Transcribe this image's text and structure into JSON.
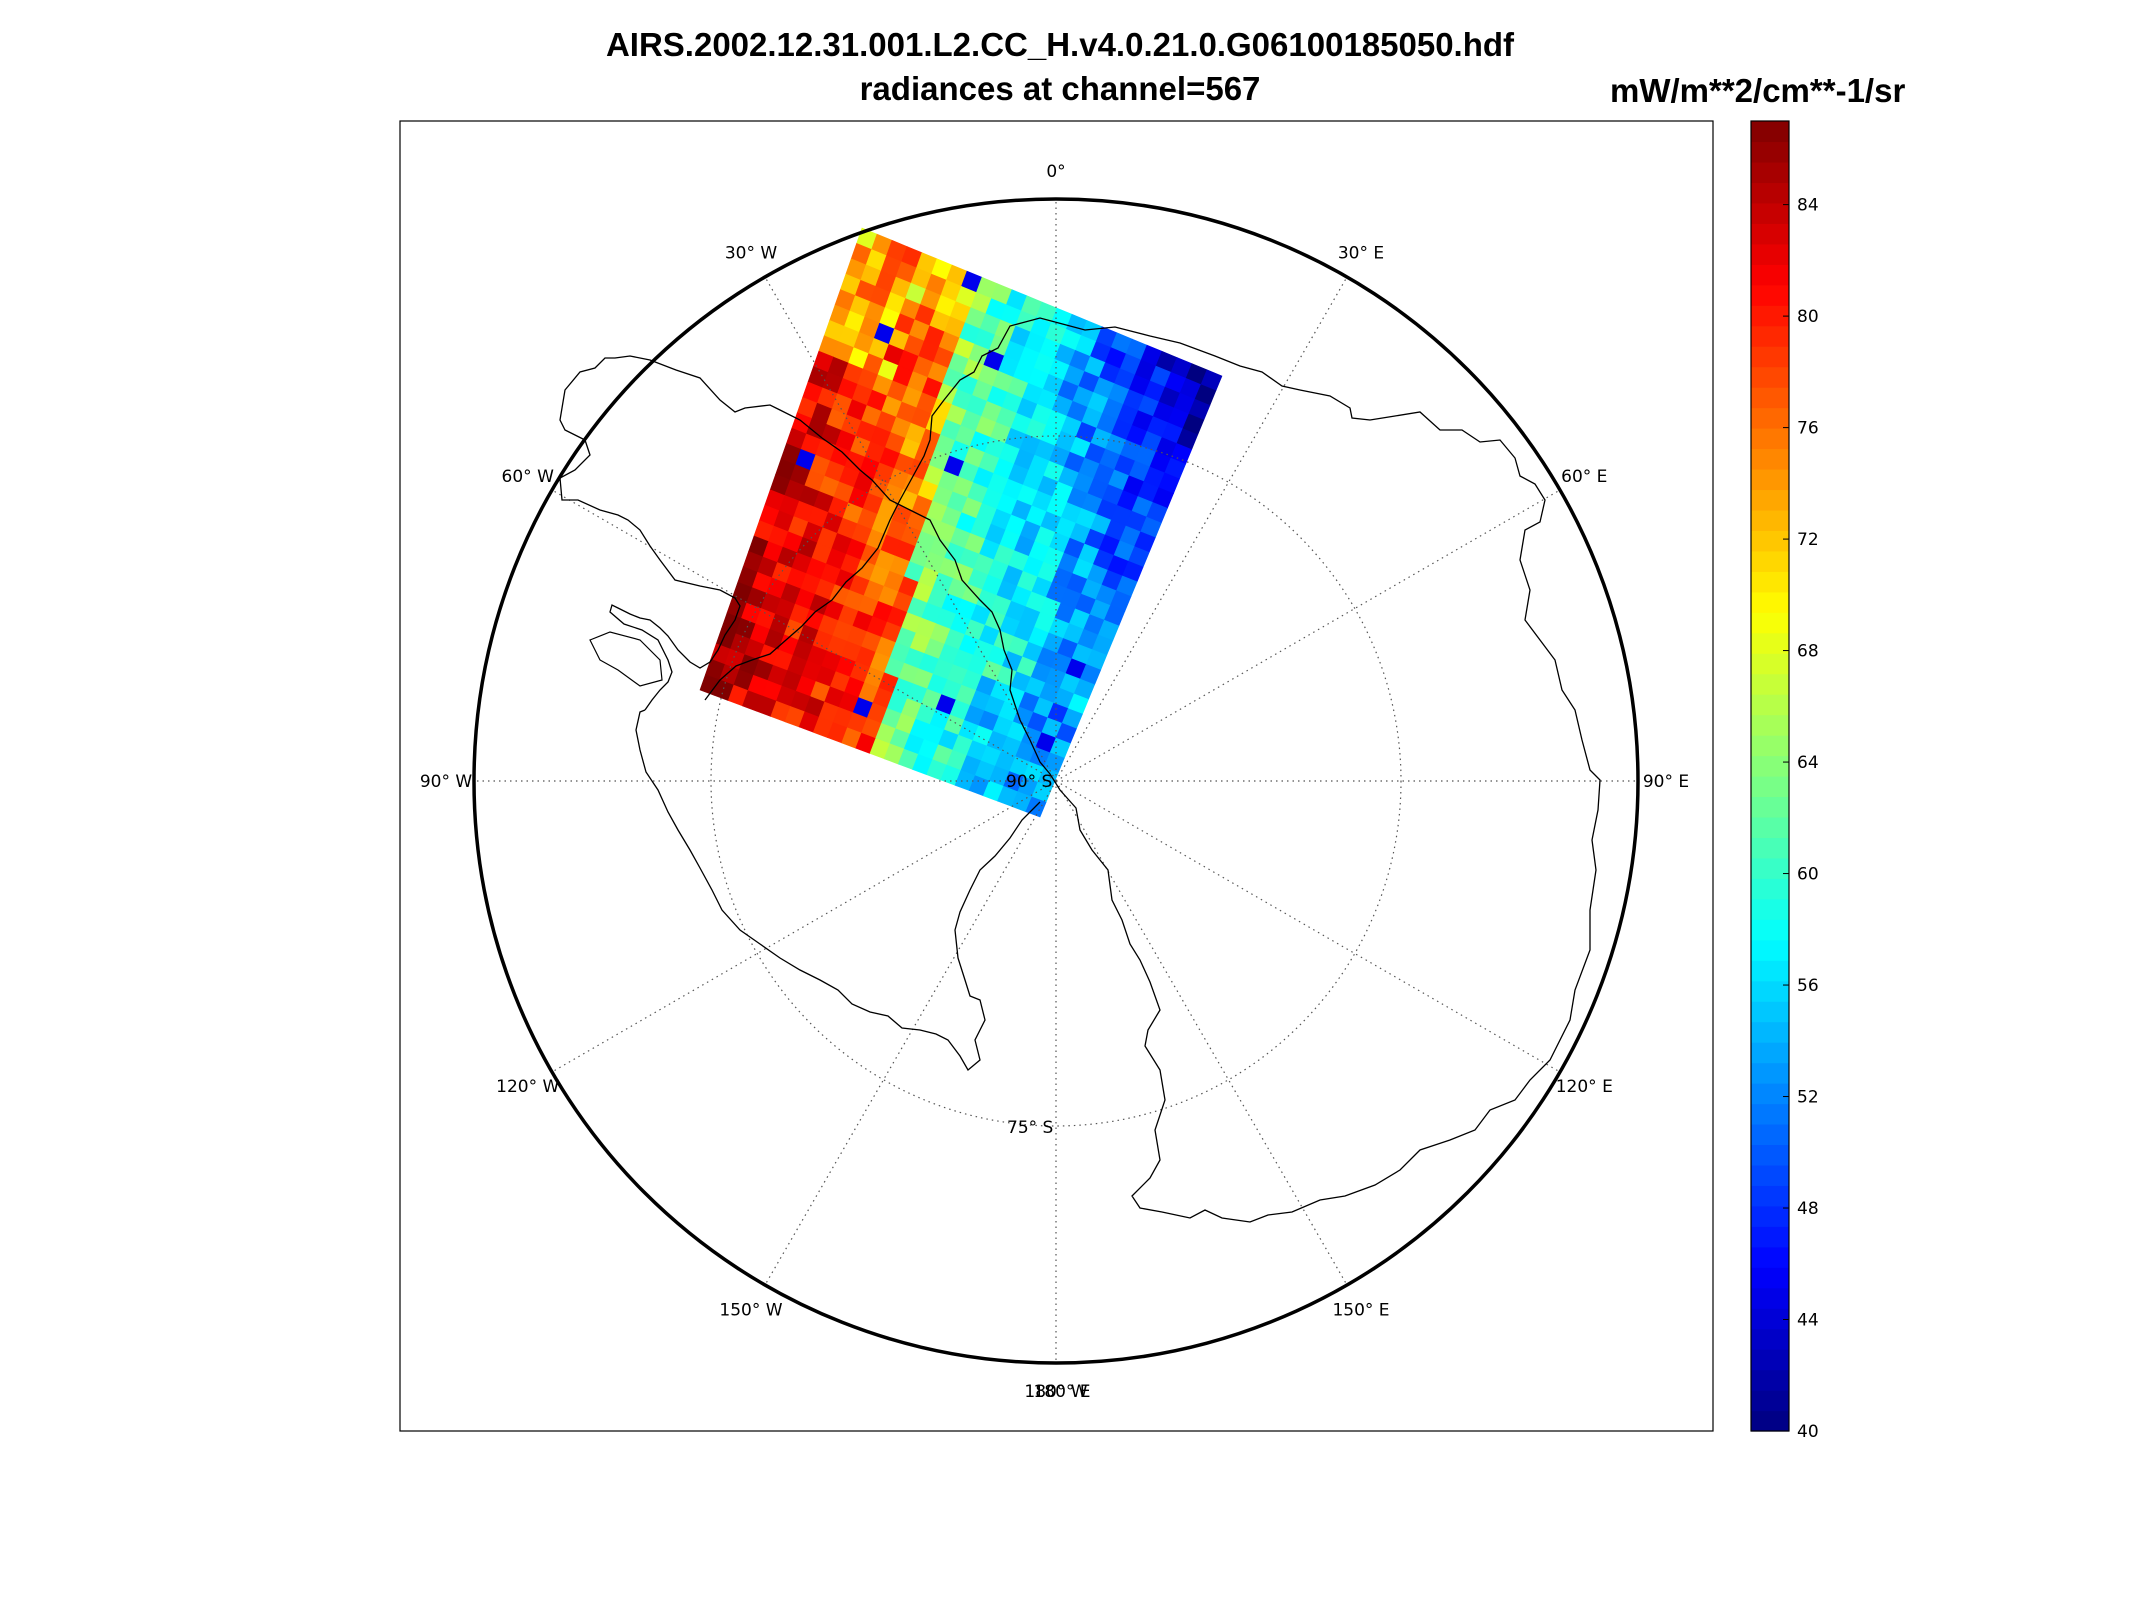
{
  "title": "AIRS.2002.12.31.001.L2.CC_H.v4.0.21.0.G06100185050.hdf",
  "subtitle": "radiances at channel=567",
  "units": "mW/m**2/cm**-1/sr",
  "map": {
    "projection": "south polar stereographic",
    "center_label": "90° S",
    "parallel_label": "75° S",
    "longitude_labels": [
      {
        "lon": 0,
        "text": "0°"
      },
      {
        "lon": -30,
        "text": "30° W"
      },
      {
        "lon": 30,
        "text": "30° E"
      },
      {
        "lon": -60,
        "text": "60° W"
      },
      {
        "lon": 60,
        "text": "60° E"
      },
      {
        "lon": -90,
        "text": "90° W"
      },
      {
        "lon": 90,
        "text": "90° E"
      },
      {
        "lon": -120,
        "text": "120° W"
      },
      {
        "lon": 120,
        "text": "120° E"
      },
      {
        "lon": -150,
        "text": "150° W"
      },
      {
        "lon": 150,
        "text": "150° E"
      },
      {
        "lon": 180,
        "text": "180° W"
      },
      {
        "lon": 180,
        "text": "180° E"
      }
    ]
  },
  "colorbar": {
    "min": 40,
    "max": 87,
    "ticks": [
      40,
      44,
      48,
      52,
      56,
      60,
      64,
      68,
      72,
      76,
      80,
      84
    ],
    "colormap": "jet"
  },
  "swath": {
    "rows": 30,
    "cols": 24,
    "value_range": [
      40,
      87
    ],
    "pattern": "warm (74-87) toward the 30°W-60°W ocean edge, cool (42-52) over the interior near 0°-30°E"
  }
}
